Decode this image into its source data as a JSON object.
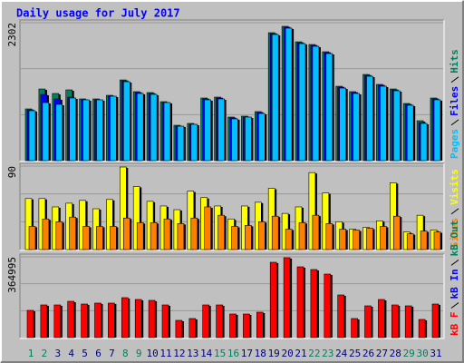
{
  "chart_data": [
    {
      "type": "bar",
      "title": "Daily usage for July 2017",
      "ylim": [
        0,
        2302
      ],
      "yticks": [
        2302
      ],
      "series": [
        {
          "name": "Hits",
          "color": "#00805c",
          "values": [
            863,
            1196,
            1120,
            1181,
            1030,
            1030,
            1090,
            1347,
            1151,
            1136,
            984,
            590,
            621,
            1045,
            1060,
            727,
            742,
            818,
            2135,
            2241,
            1983,
            1938,
            1817,
            1241,
            1151,
            1438,
            1272,
            1196,
            954,
            666,
            1045
          ]
        },
        {
          "name": "Files",
          "color": "#0000ff",
          "values": [
            848,
            1105,
            1030,
            1060,
            1015,
            1015,
            1075,
            1332,
            1136,
            1121,
            969,
            575,
            606,
            1030,
            1045,
            712,
            727,
            803,
            2120,
            2226,
            1968,
            1923,
            1802,
            1226,
            1136,
            1423,
            1257,
            1181,
            939,
            636,
            1030
          ]
        },
        {
          "name": "Pages",
          "color": "#00c0ff",
          "values": [
            833,
            969,
            939,
            1045,
            1015,
            1015,
            1075,
            1317,
            1121,
            1106,
            969,
            575,
            606,
            1015,
            1030,
            697,
            727,
            787,
            2105,
            2211,
            1953,
            1908,
            1787,
            1211,
            1121,
            1408,
            1242,
            1166,
            924,
            621,
            1015
          ]
        }
      ]
    },
    {
      "type": "bar",
      "ylim": [
        0,
        90
      ],
      "yticks": [
        90
      ],
      "series": [
        {
          "name": "Visits",
          "color": "#ffff00",
          "values": [
            55,
            55,
            46,
            50,
            53,
            44,
            54,
            89,
            68,
            52,
            47,
            43,
            63,
            56,
            47,
            33,
            47,
            51,
            66,
            39,
            46,
            83,
            61,
            30,
            22,
            24,
            31,
            72,
            19,
            37,
            21
          ]
        },
        {
          "name": "Sites",
          "color": "#ff8000",
          "values": [
            25,
            33,
            30,
            35,
            25,
            25,
            25,
            34,
            29,
            29,
            33,
            28,
            34,
            46,
            37,
            25,
            26,
            30,
            36,
            22,
            29,
            37,
            28,
            22,
            21,
            23,
            25,
            36,
            17,
            20,
            19
          ]
        }
      ]
    },
    {
      "type": "bar",
      "ylim": [
        0,
        364995
      ],
      "yticks": [
        364995
      ],
      "categories": [
        "1",
        "2",
        "3",
        "4",
        "5",
        "6",
        "7",
        "8",
        "9",
        "10",
        "11",
        "12",
        "13",
        "14",
        "15",
        "16",
        "17",
        "18",
        "19",
        "20",
        "21",
        "22",
        "23",
        "24",
        "25",
        "26",
        "27",
        "28",
        "29",
        "30",
        "31"
      ],
      "label_colors": [
        "#00805c",
        "#00805c",
        "#000080",
        "#000080",
        "#000080",
        "#000080",
        "#000080",
        "#00805c",
        "#00805c",
        "#000080",
        "#000080",
        "#000080",
        "#000080",
        "#000080",
        "#00805c",
        "#00805c",
        "#000080",
        "#000080",
        "#000080",
        "#000080",
        "#000080",
        "#00805c",
        "#00805c",
        "#000080",
        "#000080",
        "#000080",
        "#000080",
        "#000080",
        "#00805c",
        "#00805c",
        "#000080"
      ],
      "series": [
        {
          "name": "kB F",
          "color": "#ff0000",
          "values": [
            123030,
            147636,
            147636,
            164040,
            151737,
            155838,
            155838,
            180444,
            172242,
            168141,
            147636,
            77919,
            86121,
            147636,
            147636,
            106626,
            106626,
            114828,
            340383,
            360888,
            319878,
            307575,
            287070,
            192747,
            86121,
            143535,
            172242,
            147636,
            143535,
            82020,
            151737
          ]
        },
        {
          "name": "kB In",
          "color": "#0000ff"
        },
        {
          "name": "kB Out",
          "color": "#00805c"
        }
      ]
    }
  ]
}
